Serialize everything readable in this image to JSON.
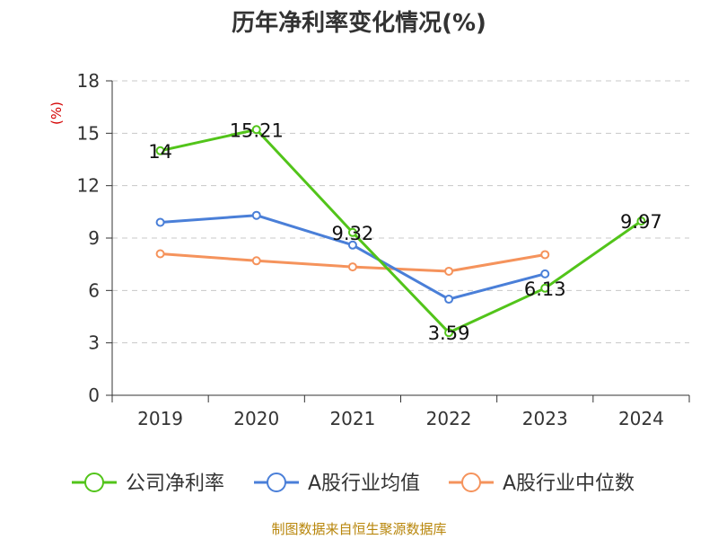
{
  "chart_data": {
    "type": "line",
    "title": "历年净利率变化情况(%)",
    "ylabel": "(%)",
    "xlabel": "",
    "categories": [
      "2019",
      "2020",
      "2021",
      "2022",
      "2023",
      "2024"
    ],
    "ylim": [
      0,
      18
    ],
    "yticks": [
      0,
      3,
      6,
      9,
      12,
      15,
      18
    ],
    "grid": true,
    "legend_position": "bottom",
    "series": [
      {
        "name": "公司净利率",
        "color": "#52c41a",
        "values": [
          14,
          15.21,
          9.32,
          3.59,
          6.13,
          9.97
        ],
        "labels": [
          "14",
          "15.21",
          "9.32",
          "3.59",
          "6.13",
          "9.97"
        ]
      },
      {
        "name": "A股行业均值",
        "color": "#4a7fd8",
        "values": [
          9.9,
          10.3,
          8.6,
          5.5,
          6.95,
          null
        ]
      },
      {
        "name": "A股行业中位数",
        "color": "#f5935c",
        "values": [
          8.1,
          7.7,
          7.35,
          7.1,
          8.05,
          null
        ]
      }
    ]
  },
  "source": "制图数据来自恒生聚源数据库"
}
